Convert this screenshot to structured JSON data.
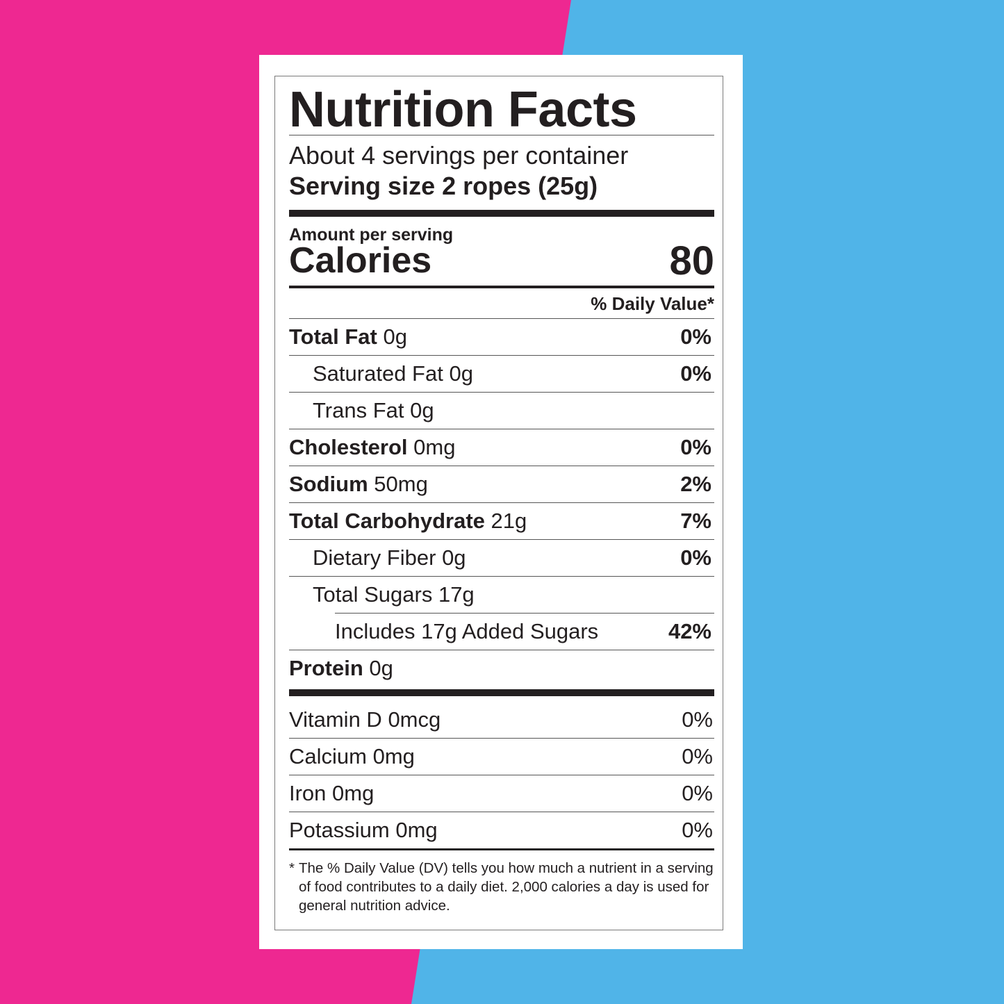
{
  "colors": {
    "left_panel": "#ee2891",
    "right_panel": "#50b4e8",
    "card": "#ffffff",
    "ink": "#231f20"
  },
  "label": {
    "title": "Nutrition Facts",
    "servings_per_container": "About 4 servings per container",
    "serving_size": "Serving size 2 ropes (25g)",
    "amount_per_serving": "Amount per serving",
    "calories_label": "Calories",
    "calories_value": "80",
    "daily_value_header": "% Daily Value*",
    "nutrients": [
      {
        "name": "Total Fat",
        "amount": "0g",
        "dv": "0%"
      },
      {
        "name": "Saturated Fat",
        "amount": "0g",
        "dv": "0%"
      },
      {
        "name": "Trans Fat",
        "amount": "0g",
        "dv": ""
      },
      {
        "name": "Cholesterol",
        "amount": "0mg",
        "dv": "0%"
      },
      {
        "name": "Sodium",
        "amount": "50mg",
        "dv": "2%"
      },
      {
        "name": "Total Carbohydrate",
        "amount": "21g",
        "dv": "7%"
      },
      {
        "name": "Dietary Fiber",
        "amount": "0g",
        "dv": "0%"
      },
      {
        "name": "Total Sugars",
        "amount": "17g",
        "dv": ""
      },
      {
        "name": "Includes 17g Added Sugars",
        "amount": "",
        "dv": "42%"
      },
      {
        "name": "Protein",
        "amount": "0g",
        "dv": ""
      }
    ],
    "vitamins": [
      {
        "name": "Vitamin D",
        "amount": "0mcg",
        "dv": "0%"
      },
      {
        "name": "Calcium",
        "amount": "0mg",
        "dv": "0%"
      },
      {
        "name": "Iron",
        "amount": "0mg",
        "dv": "0%"
      },
      {
        "name": "Potassium",
        "amount": "0mg",
        "dv": "0%"
      }
    ],
    "footnote_star": "*",
    "footnote": "The % Daily Value (DV) tells you how much a nutrient in a serving of food contributes to a daily diet. 2,000 calories a day is used for general nutrition advice."
  }
}
